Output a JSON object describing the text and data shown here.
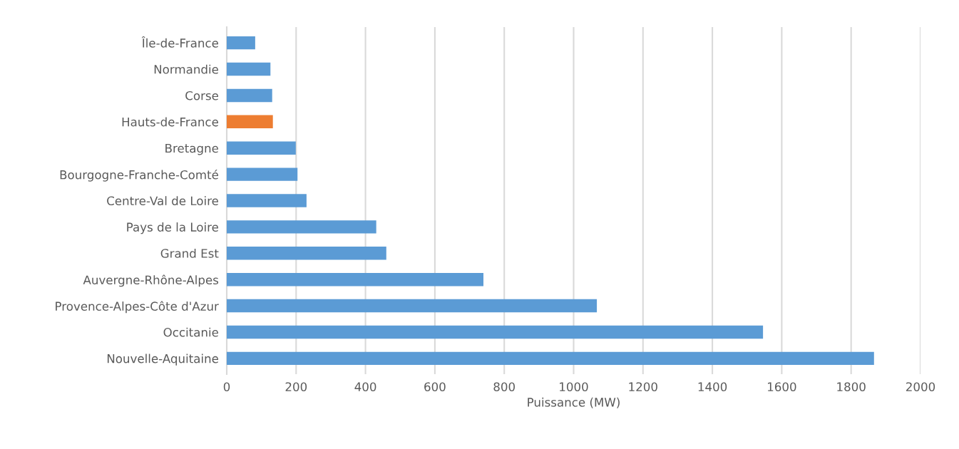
{
  "chart_data": {
    "type": "bar",
    "orientation": "horizontal",
    "xlabel": "Puissance (MW)",
    "categories": [
      "Île-de-France",
      "Normandie",
      "Corse",
      "Hauts-de-France",
      "Bretagne",
      "Bourgogne-Franche-Comté",
      "Centre-Val de Loire",
      "Pays de la Loire",
      "Grand Est",
      "Auvergne-Rhône-Alpes",
      "Provence-Alpes-Côte d'Azur",
      "Occitanie",
      "Nouvelle-Aquitaine"
    ],
    "values": [
      82,
      126,
      131,
      133,
      199,
      204,
      230,
      431,
      460,
      740,
      1067,
      1546,
      1866
    ],
    "colors": [
      "#5b9bd5",
      "#5b9bd5",
      "#5b9bd5",
      "#ed7d31",
      "#5b9bd5",
      "#5b9bd5",
      "#5b9bd5",
      "#5b9bd5",
      "#5b9bd5",
      "#5b9bd5",
      "#5b9bd5",
      "#5b9bd5",
      "#5b9bd5"
    ],
    "xlim": [
      0,
      2000
    ],
    "xticks": [
      0,
      200,
      400,
      600,
      800,
      1000,
      1200,
      1400,
      1600,
      1800,
      2000
    ],
    "grid": "x",
    "legend": false
  }
}
